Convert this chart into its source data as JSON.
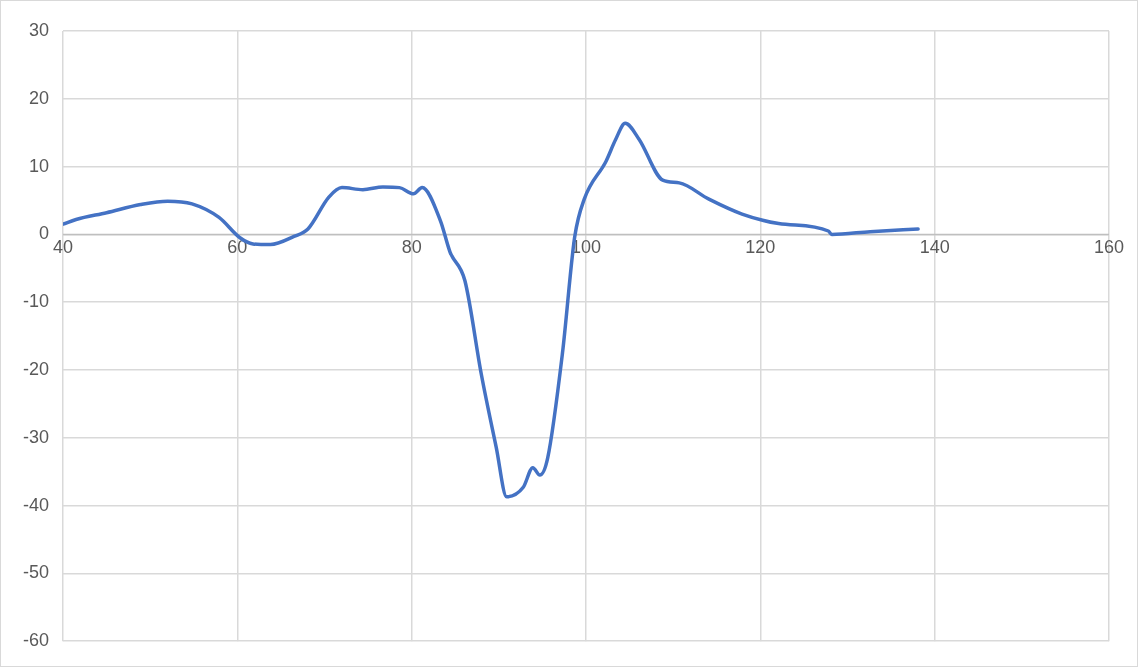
{
  "chart_data": {
    "type": "line",
    "x": [
      40,
      41.5,
      45,
      48.9,
      52,
      54.8,
      57.9,
      60.3,
      61.8,
      63.8,
      66.5,
      68.1,
      70.5,
      72,
      74.4,
      76.7,
      78.6,
      80.2,
      81.2,
      83.3,
      84.4,
      86.1,
      88,
      89.7,
      90.9,
      92.8,
      93.9,
      94.7,
      95.6,
      97.3,
      98.7,
      99.8,
      102.3,
      103.4,
      104.5,
      106.1,
      108.8,
      110.7,
      114.1,
      117.9,
      122.1,
      127.8,
      128.2,
      132.6,
      138.1
    ],
    "series": [
      {
        "color": "#4472c4",
        "values": [
          1.5,
          2.2,
          3.2,
          4.4,
          4.9,
          4.5,
          2.5,
          -0.5,
          -1.4,
          -1.5,
          -0.3,
          0.8,
          5.5,
          6.9,
          6.6,
          7,
          6.9,
          6,
          6.9,
          2,
          -2.6,
          -6.8,
          -20.7,
          -31.4,
          -38.7,
          -37.3,
          -34.4,
          -35.5,
          -33,
          -17.5,
          -0.4,
          5.2,
          10.8,
          14,
          16.4,
          14,
          8,
          7.6,
          5.2,
          3,
          1.6,
          0.5,
          0,
          0.4,
          0.8
        ]
      }
    ],
    "xlim": [
      40,
      160
    ],
    "xticks": [
      40,
      60,
      80,
      100,
      120,
      140,
      160
    ],
    "ylim": [
      -60,
      30
    ],
    "yticks": [
      -60,
      -50,
      -40,
      -30,
      -20,
      -10,
      0,
      10,
      20,
      30
    ],
    "grid": true,
    "legend": false,
    "marker": "none",
    "line_style": "solid"
  }
}
